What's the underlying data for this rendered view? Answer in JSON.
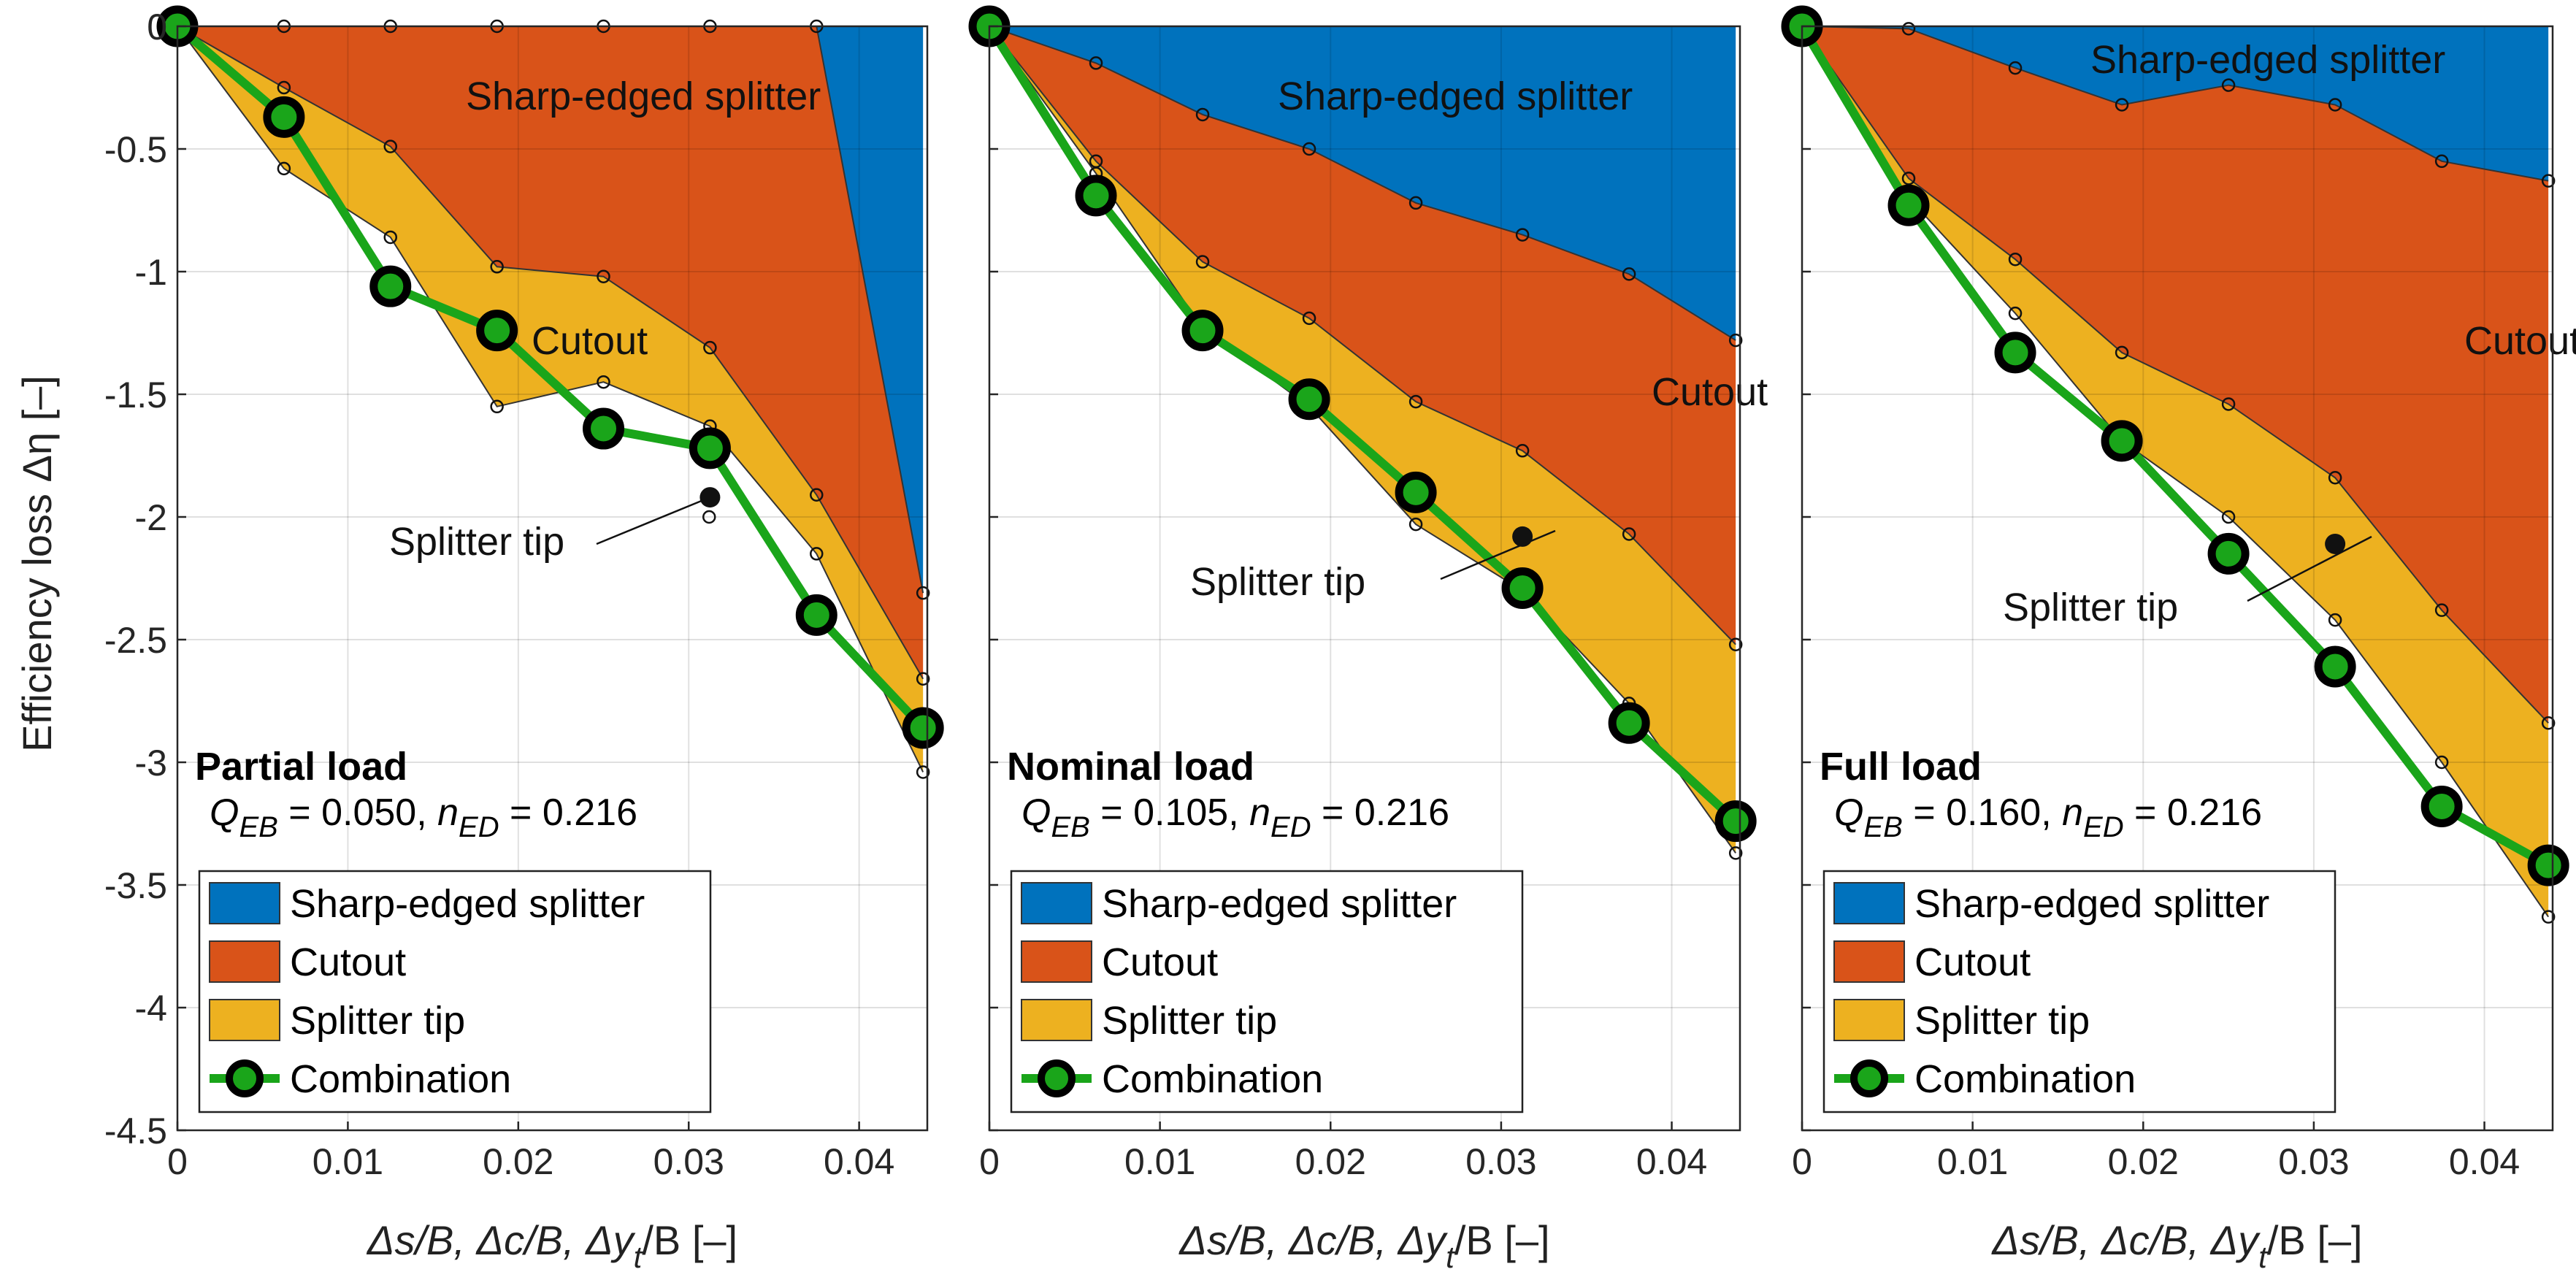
{
  "chart_data": {
    "type": "area",
    "shared": {
      "ylabel": "Efficiency loss Δη [–]",
      "xlabel_parts": [
        "Δs/B, Δc/B, Δy",
        "t",
        "/B [–]"
      ],
      "x_ticks": [
        0,
        0.01,
        0.02,
        0.03,
        0.04
      ],
      "x_tick_labels": [
        "0",
        "0.01",
        "0.02",
        "0.03",
        "0.04"
      ],
      "y_ticks": [
        0,
        -0.5,
        -1,
        -1.5,
        -2,
        -2.5,
        -3,
        -3.5,
        -4,
        -4.5
      ],
      "y_tick_labels": [
        "0",
        "-0.5",
        "-1",
        "-1.5",
        "-2",
        "-2.5",
        "-3",
        "-3.5",
        "-4",
        "-4.5"
      ],
      "xlim": [
        0,
        0.044
      ],
      "ylim": [
        -4.5,
        0
      ],
      "grid": true,
      "legend_placement": "bottom-left",
      "legend": [
        "Sharp-edged splitter",
        "Cutout",
        "Splitter tip",
        "Combination"
      ],
      "colors": {
        "Sharp-edged splitter": "#0072BD",
        "Cutout": "#D95319",
        "Splitter tip": "#EDB120",
        "Combination_line": "#1AA51A",
        "Combination_marker_edge": "#000000"
      },
      "series_note": "Stacked areas: Sharp-edged splitter from 0 to its curve; Cutout from that curve to the Cutout curve; Splitter tip from that curve to the Splitter tip curve. The single solid dot marks a splitter-tip configuration at x = 0.03125."
    },
    "panels": [
      {
        "title": "Partial load",
        "q_label": "Q",
        "q_sub": "EB",
        "q_value": "= 0.050,",
        "n_label": "n",
        "n_sub": "ED",
        "n_value": "= 0.216",
        "annotations": {
          "sharp": "Sharp-edged splitter",
          "cutout": "Cutout",
          "tip": "Splitter tip"
        },
        "sharp_x": [
          0,
          0.00625,
          0.0125,
          0.01875,
          0.025,
          0.03125,
          0.0375,
          0.04375
        ],
        "sharp_y": [
          0,
          0,
          0,
          0,
          0,
          0,
          0,
          -2.31
        ],
        "cutout_x": [
          0,
          0.00625,
          0.0125,
          0.01875,
          0.025,
          0.03125,
          0.0375,
          0.04375
        ],
        "cutout_y": [
          0,
          -0.25,
          -0.49,
          -0.98,
          -1.02,
          -1.31,
          -1.91,
          -2.66
        ],
        "tip_x": [
          0,
          0.00625,
          0.0125,
          0.01875,
          0.025,
          0.03125,
          0.0375,
          0.04375
        ],
        "tip_y": [
          0,
          -0.58,
          -0.86,
          -1.55,
          -1.45,
          -1.63,
          -2.15,
          -3.04
        ],
        "tip_extra": {
          "x": 0.0312,
          "y": -2.0
        },
        "solid_dot": {
          "x": 0.03125,
          "y": -1.92
        },
        "combination_x": [
          0,
          0.00625,
          0.0125,
          0.01875,
          0.025,
          0.03125,
          0.0375,
          0.04375
        ],
        "combination_y": [
          0,
          -0.37,
          -1.06,
          -1.24,
          -1.64,
          -1.72,
          -2.4,
          -2.86
        ]
      },
      {
        "title": "Nominal load",
        "q_label": "Q",
        "q_sub": "EB",
        "q_value": "= 0.105,",
        "n_label": "n",
        "n_sub": "ED",
        "n_value": "= 0.216",
        "annotations": {
          "sharp": "Sharp-edged splitter",
          "cutout": "Cutout",
          "tip": "Splitter tip"
        },
        "sharp_x": [
          0,
          0.00625,
          0.0125,
          0.01875,
          0.025,
          0.03125,
          0.0375,
          0.04375
        ],
        "sharp_y": [
          0,
          -0.15,
          -0.36,
          -0.5,
          -0.72,
          -0.85,
          -1.01,
          -1.28
        ],
        "cutout_x": [
          0,
          0.00625,
          0.0125,
          0.01875,
          0.025,
          0.03125,
          0.0375,
          0.04375
        ],
        "cutout_y": [
          0,
          -0.55,
          -0.96,
          -1.19,
          -1.53,
          -1.73,
          -2.07,
          -2.52
        ],
        "tip_x": [
          0,
          0.00625,
          0.0125,
          0.01875,
          0.025,
          0.03125,
          0.0375,
          0.04375
        ],
        "tip_y": [
          0,
          -0.6,
          -1.23,
          -1.55,
          -2.03,
          -2.3,
          -2.76,
          -3.37
        ],
        "tip_extra": null,
        "solid_dot": {
          "x": 0.03125,
          "y": -2.08
        },
        "combination_x": [
          0,
          0.00625,
          0.0125,
          0.01875,
          0.025,
          0.03125,
          0.0375,
          0.04375
        ],
        "combination_y": [
          0,
          -0.69,
          -1.24,
          -1.52,
          -1.9,
          -2.29,
          -2.84,
          -3.24
        ]
      },
      {
        "title": "Full load",
        "q_label": "Q",
        "q_sub": "EB",
        "q_value": "= 0.160,",
        "n_label": "n",
        "n_sub": "ED",
        "n_value": "= 0.216",
        "annotations": {
          "sharp": "Sharp-edged splitter",
          "cutout": "Cutout",
          "tip": "Splitter tip"
        },
        "sharp_x": [
          0,
          0.00625,
          0.0125,
          0.01875,
          0.025,
          0.03125,
          0.0375,
          0.04375
        ],
        "sharp_y": [
          0,
          -0.01,
          -0.17,
          -0.32,
          -0.24,
          -0.32,
          -0.55,
          -0.63
        ],
        "cutout_x": [
          0,
          0.00625,
          0.0125,
          0.01875,
          0.025,
          0.03125,
          0.0375,
          0.04375
        ],
        "cutout_y": [
          0,
          -0.62,
          -0.95,
          -1.33,
          -1.54,
          -1.84,
          -2.38,
          -2.84
        ],
        "tip_x": [
          0,
          0.00625,
          0.0125,
          0.01875,
          0.025,
          0.03125,
          0.0375,
          0.04375
        ],
        "tip_y": [
          0,
          -0.7,
          -1.17,
          -1.69,
          -2.0,
          -2.42,
          -3.0,
          -3.63
        ],
        "tip_extra": null,
        "solid_dot": {
          "x": 0.03125,
          "y": -2.11
        },
        "combination_x": [
          0,
          0.00625,
          0.0125,
          0.01875,
          0.025,
          0.03125,
          0.0375,
          0.04375
        ],
        "combination_y": [
          0,
          -0.73,
          -1.33,
          -1.69,
          -2.15,
          -2.61,
          -3.18,
          -3.42
        ]
      }
    ]
  }
}
